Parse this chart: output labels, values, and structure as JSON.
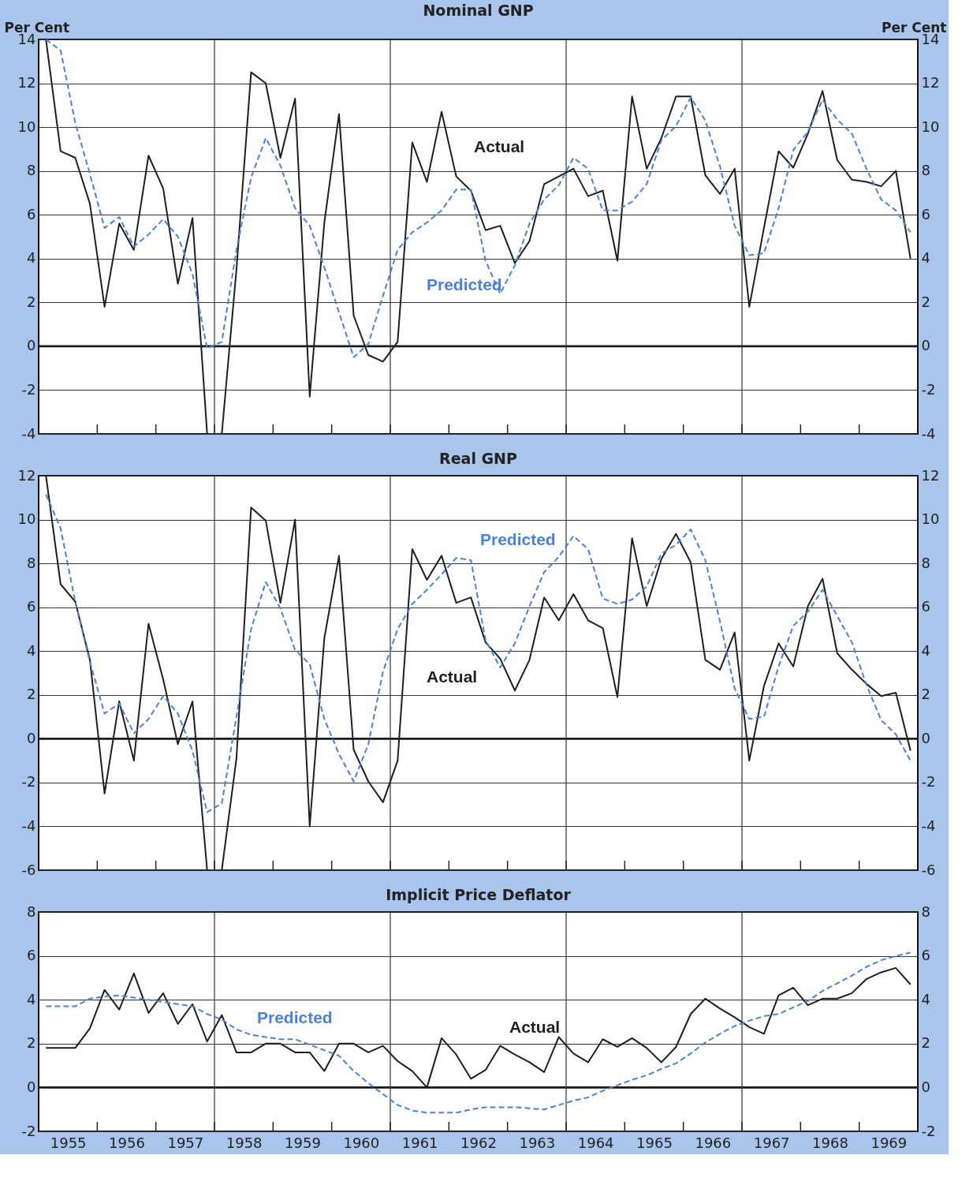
{
  "chart_data": [
    {
      "type": "line",
      "title": "Nominal GNP",
      "ylabel": "Per Cent",
      "y2label": "Per Cent",
      "grid": "y",
      "tick_labels": "y",
      "x": [
        1955.125,
        1955.375,
        1955.625,
        1955.875,
        1956.125,
        1956.375,
        1956.625,
        1956.875,
        1957.125,
        1957.375,
        1957.625,
        1957.875,
        1958.125,
        1958.375,
        1958.625,
        1958.875,
        1959.125,
        1959.375,
        1959.625,
        1959.875,
        1960.125,
        1960.375,
        1960.625,
        1960.875,
        1961.125,
        1961.375,
        1961.625,
        1961.875,
        1962.125,
        1962.375,
        1962.625,
        1962.875,
        1963.125,
        1963.375,
        1963.625,
        1963.875,
        1964.125,
        1964.375,
        1964.625,
        1964.875,
        1965.125,
        1965.375,
        1965.625,
        1965.875,
        1966.125,
        1966.375,
        1966.625,
        1966.875,
        1967.125,
        1967.375,
        1967.625,
        1967.875,
        1968.125,
        1968.375,
        1968.625,
        1968.875,
        1969.125,
        1969.375,
        1969.625,
        1969.875
      ],
      "xlim": [
        1955,
        1970
      ],
      "xticks": [
        {
          "value": 1956,
          "label": null
        },
        {
          "value": 1957,
          "label": null
        },
        {
          "value": 1958,
          "label": null
        },
        {
          "value": 1959,
          "label": null
        },
        {
          "value": 1960,
          "label": null
        },
        {
          "value": 1961,
          "label": null
        },
        {
          "value": 1962,
          "label": null
        },
        {
          "value": 1963,
          "label": null
        },
        {
          "value": 1964,
          "label": null
        },
        {
          "value": 1965,
          "label": null
        },
        {
          "value": 1966,
          "label": null
        },
        {
          "value": 1967,
          "label": null
        },
        {
          "value": 1968,
          "label": null
        },
        {
          "value": 1969,
          "label": null
        }
      ],
      "ylim": [
        -4,
        14
      ],
      "yticks": [
        -4,
        -2,
        0,
        2,
        4,
        6,
        8,
        10,
        12,
        14
      ],
      "y2lim": [
        -4,
        14
      ],
      "y2ticks": [
        -4,
        -2,
        0,
        2,
        4,
        6,
        8,
        10,
        12,
        14
      ],
      "ref_lines": [
        {
          "axis": "y",
          "value": 0,
          "color": "#1a1a1a"
        },
        {
          "axis": "x",
          "value": 1958,
          "color": "#333333"
        },
        {
          "axis": "x",
          "value": 1961,
          "color": "#333333"
        },
        {
          "axis": "x",
          "value": 1964,
          "color": "#333333"
        },
        {
          "axis": "x",
          "value": 1967,
          "color": "#333333"
        }
      ],
      "series": [
        {
          "name": "Actual",
          "color": "#1f1f1f",
          "line_style": "solid",
          "values": [
            14,
            8.9,
            8.6,
            6.5,
            1.8,
            5.6,
            4.4,
            8.7,
            7.2,
            2.85,
            5.85,
            -4,
            -4,
            3.5,
            12.5,
            12.0,
            8.6,
            11.3,
            -2.3,
            5.65,
            10.6,
            1.4,
            -0.4,
            -0.7,
            0.2,
            9.3,
            7.5,
            10.7,
            7.75,
            7.1,
            5.3,
            5.5,
            3.8,
            4.8,
            7.4,
            7.75,
            8.1,
            6.85,
            7.1,
            3.9,
            11.4,
            8.1,
            9.5,
            11.4,
            11.4,
            7.8,
            6.95,
            8.1,
            1.8,
            5.4,
            8.9,
            8.15,
            9.7,
            11.65,
            8.5,
            7.6,
            7.5,
            7.3,
            8.0,
            4.0
          ]
        },
        {
          "name": "Predicted",
          "color": "#4b82d9",
          "line_style": "dashed",
          "values": [
            14,
            13.5,
            10.2,
            7.85,
            5.4,
            5.9,
            4.55,
            5.1,
            5.8,
            5.0,
            3.3,
            -0.1,
            0.2,
            4.4,
            7.7,
            9.5,
            8.25,
            6.3,
            5.5,
            3.6,
            1.55,
            -0.5,
            0.1,
            2.3,
            4.4,
            5.2,
            5.65,
            6.2,
            7.15,
            7.15,
            3.9,
            2.4,
            3.7,
            5.6,
            6.7,
            7.35,
            8.6,
            8.1,
            6.2,
            6.2,
            6.6,
            7.4,
            9.4,
            10.05,
            11.35,
            10.3,
            8.2,
            5.5,
            4.15,
            4.25,
            6.3,
            8.95,
            9.8,
            11.25,
            10.35,
            9.7,
            8.1,
            6.7,
            6.2,
            5.2
          ]
        }
      ]
    },
    {
      "type": "line",
      "title": "Real GNP",
      "grid": "y",
      "tick_labels": "y",
      "x": [
        1955.125,
        1955.375,
        1955.625,
        1955.875,
        1956.125,
        1956.375,
        1956.625,
        1956.875,
        1957.125,
        1957.375,
        1957.625,
        1957.875,
        1958.125,
        1958.375,
        1958.625,
        1958.875,
        1959.125,
        1959.375,
        1959.625,
        1959.875,
        1960.125,
        1960.375,
        1960.625,
        1960.875,
        1961.125,
        1961.375,
        1961.625,
        1961.875,
        1962.125,
        1962.375,
        1962.625,
        1962.875,
        1963.125,
        1963.375,
        1963.625,
        1963.875,
        1964.125,
        1964.375,
        1964.625,
        1964.875,
        1965.125,
        1965.375,
        1965.625,
        1965.875,
        1966.125,
        1966.375,
        1966.625,
        1966.875,
        1967.125,
        1967.375,
        1967.625,
        1967.875,
        1968.125,
        1968.375,
        1968.625,
        1968.875,
        1969.125,
        1969.375,
        1969.625,
        1969.875
      ],
      "xlim": [
        1955,
        1970
      ],
      "xticks": [
        {
          "value": 1956,
          "label": null
        },
        {
          "value": 1957,
          "label": null
        },
        {
          "value": 1958,
          "label": null
        },
        {
          "value": 1959,
          "label": null
        },
        {
          "value": 1960,
          "label": null
        },
        {
          "value": 1961,
          "label": null
        },
        {
          "value": 1962,
          "label": null
        },
        {
          "value": 1963,
          "label": null
        },
        {
          "value": 1964,
          "label": null
        },
        {
          "value": 1965,
          "label": null
        },
        {
          "value": 1966,
          "label": null
        },
        {
          "value": 1967,
          "label": null
        },
        {
          "value": 1968,
          "label": null
        },
        {
          "value": 1969,
          "label": null
        }
      ],
      "ylim": [
        -6,
        12
      ],
      "yticks": [
        -6,
        -4,
        -2,
        0,
        2,
        4,
        6,
        8,
        10,
        12
      ],
      "y2lim": [
        -6,
        12
      ],
      "y2ticks": [
        -6,
        -4,
        -2,
        0,
        2,
        4,
        6,
        8,
        10,
        12
      ],
      "ref_lines": [
        {
          "axis": "y",
          "value": 0,
          "color": "#1a1a1a"
        },
        {
          "axis": "x",
          "value": 1958,
          "color": "#333333"
        },
        {
          "axis": "x",
          "value": 1961,
          "color": "#333333"
        },
        {
          "axis": "x",
          "value": 1964,
          "color": "#333333"
        },
        {
          "axis": "x",
          "value": 1967,
          "color": "#333333"
        }
      ],
      "series": [
        {
          "name": "Actual",
          "color": "#1f1f1f",
          "line_style": "solid",
          "values": [
            12,
            7.05,
            6.25,
            3.6,
            -2.5,
            1.7,
            -1.0,
            5.25,
            2.7,
            -0.25,
            1.7,
            -6,
            -6,
            -0.9,
            10.55,
            9.95,
            6.2,
            10.0,
            -4.0,
            4.6,
            8.35,
            -0.5,
            -1.95,
            -2.9,
            -1.0,
            8.65,
            7.25,
            8.35,
            6.2,
            6.45,
            4.4,
            3.65,
            2.2,
            3.6,
            6.45,
            5.4,
            6.6,
            5.4,
            5.05,
            1.9,
            9.15,
            6.05,
            8.2,
            9.35,
            8.05,
            3.6,
            3.15,
            4.85,
            -1.0,
            2.4,
            4.35,
            3.3,
            6.05,
            7.3,
            3.9,
            3.15,
            2.5,
            1.95,
            2.1,
            -0.55
          ]
        },
        {
          "name": "Predicted",
          "color": "#4b82d9",
          "line_style": "dashed",
          "values": [
            11.15,
            9.6,
            6.25,
            3.5,
            1.15,
            1.6,
            0.25,
            0.9,
            1.95,
            1.15,
            -0.55,
            -3.35,
            -2.95,
            1.0,
            5.0,
            7.15,
            5.95,
            4.05,
            3.4,
            0.9,
            -0.7,
            -1.95,
            -0.25,
            3.05,
            5.0,
            6.15,
            6.8,
            7.5,
            8.25,
            8.15,
            4.5,
            3.25,
            4.35,
            6.05,
            7.6,
            8.3,
            9.25,
            8.65,
            6.4,
            6.15,
            6.35,
            6.95,
            8.45,
            8.85,
            9.55,
            8.15,
            5.35,
            2.3,
            0.9,
            1.0,
            3.3,
            5.15,
            5.8,
            6.8,
            5.6,
            4.4,
            2.45,
            0.85,
            0.2,
            -1.0
          ]
        }
      ]
    },
    {
      "type": "line",
      "title": "Implicit Price Deflator",
      "grid": "y",
      "x": [
        1955.125,
        1955.375,
        1955.625,
        1955.875,
        1956.125,
        1956.375,
        1956.625,
        1956.875,
        1957.125,
        1957.375,
        1957.625,
        1957.875,
        1958.125,
        1958.375,
        1958.625,
        1958.875,
        1959.125,
        1959.375,
        1959.625,
        1959.875,
        1960.125,
        1960.375,
        1960.625,
        1960.875,
        1961.125,
        1961.375,
        1961.625,
        1961.875,
        1962.125,
        1962.375,
        1962.625,
        1962.875,
        1963.125,
        1963.375,
        1963.625,
        1963.875,
        1964.125,
        1964.375,
        1964.625,
        1964.875,
        1965.125,
        1965.375,
        1965.625,
        1965.875,
        1966.125,
        1966.375,
        1966.625,
        1966.875,
        1967.125,
        1967.375,
        1967.625,
        1967.875,
        1968.125,
        1968.375,
        1968.625,
        1968.875,
        1969.125,
        1969.375,
        1969.625,
        1969.875
      ],
      "xlim": [
        1955,
        1970
      ],
      "xticks": [
        {
          "value": 1955.5,
          "label": "1955"
        },
        {
          "value": 1956.5,
          "label": "1956"
        },
        {
          "value": 1957.5,
          "label": "1957"
        },
        {
          "value": 1958.5,
          "label": "1958"
        },
        {
          "value": 1959.5,
          "label": "1959"
        },
        {
          "value": 1960.5,
          "label": "1960"
        },
        {
          "value": 1961.5,
          "label": "1961"
        },
        {
          "value": 1962.5,
          "label": "1962"
        },
        {
          "value": 1963.5,
          "label": "1963"
        },
        {
          "value": 1964.5,
          "label": "1964"
        },
        {
          "value": 1965.5,
          "label": "1965"
        },
        {
          "value": 1966.5,
          "label": "1966"
        },
        {
          "value": 1967.5,
          "label": "1967"
        },
        {
          "value": 1968.5,
          "label": "1968"
        },
        {
          "value": 1969.5,
          "label": "1969"
        },
        {
          "value": 1956,
          "label": null
        },
        {
          "value": 1957,
          "label": null
        },
        {
          "value": 1958,
          "label": null
        },
        {
          "value": 1959,
          "label": null
        },
        {
          "value": 1960,
          "label": null
        },
        {
          "value": 1961,
          "label": null
        },
        {
          "value": 1962,
          "label": null
        },
        {
          "value": 1963,
          "label": null
        },
        {
          "value": 1964,
          "label": null
        },
        {
          "value": 1965,
          "label": null
        },
        {
          "value": 1966,
          "label": null
        },
        {
          "value": 1967,
          "label": null
        },
        {
          "value": 1968,
          "label": null
        },
        {
          "value": 1969,
          "label": null
        }
      ],
      "ylim": [
        -2,
        8
      ],
      "yticks": [
        -2,
        0,
        2,
        4,
        6,
        8
      ],
      "y2lim": [
        -2,
        8
      ],
      "y2ticks": [
        -2,
        0,
        2,
        4,
        6,
        8
      ],
      "ref_lines": [
        {
          "axis": "y",
          "value": 0,
          "color": "#1a1a1a"
        },
        {
          "axis": "x",
          "value": 1958,
          "color": "#333333"
        },
        {
          "axis": "x",
          "value": 1961,
          "color": "#333333"
        },
        {
          "axis": "x",
          "value": 1964,
          "color": "#333333"
        },
        {
          "axis": "x",
          "value": 1967,
          "color": "#333333"
        }
      ],
      "series": [
        {
          "name": "Actual",
          "color": "#1f1f1f",
          "line_style": "solid",
          "values": [
            1.8,
            1.8,
            1.8,
            2.7,
            4.45,
            3.55,
            5.2,
            3.4,
            4.3,
            2.9,
            3.8,
            2.1,
            3.3,
            1.6,
            1.6,
            2.0,
            2.0,
            1.6,
            1.6,
            0.75,
            2.0,
            2.0,
            1.6,
            1.9,
            1.2,
            0.75,
            0.0,
            2.25,
            1.5,
            0.4,
            0.8,
            1.9,
            1.5,
            1.15,
            0.7,
            2.3,
            1.55,
            1.15,
            2.2,
            1.85,
            2.25,
            1.8,
            1.15,
            1.85,
            3.35,
            4.05,
            3.6,
            3.2,
            2.75,
            2.45,
            4.2,
            4.55,
            3.75,
            4.05,
            4.05,
            4.3,
            4.95,
            5.25,
            5.45,
            4.7
          ]
        },
        {
          "name": "Predicted",
          "color": "#4b82d9",
          "line_style": "dashed",
          "values": [
            3.7,
            3.7,
            3.7,
            4.05,
            4.15,
            4.2,
            4.1,
            4.0,
            3.9,
            3.8,
            3.7,
            3.35,
            3.1,
            2.65,
            2.4,
            2.3,
            2.2,
            2.2,
            1.95,
            1.7,
            1.45,
            0.75,
            0.2,
            -0.3,
            -0.8,
            -1.05,
            -1.15,
            -1.15,
            -1.15,
            -1.0,
            -0.9,
            -0.9,
            -0.9,
            -0.95,
            -1.0,
            -0.8,
            -0.6,
            -0.45,
            -0.15,
            0.1,
            0.35,
            0.55,
            0.85,
            1.1,
            1.55,
            2.05,
            2.45,
            2.8,
            3.05,
            3.25,
            3.35,
            3.65,
            3.95,
            4.4,
            4.75,
            5.1,
            5.5,
            5.8,
            6.0,
            6.15
          ]
        }
      ]
    }
  ]
}
